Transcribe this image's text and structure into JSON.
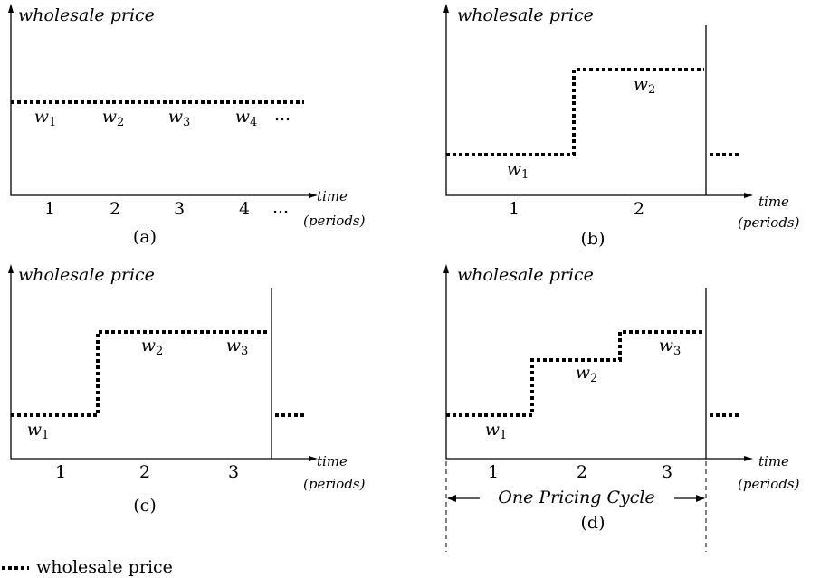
{
  "panels": [
    {
      "y_label": "wholesale price",
      "x_label": "time",
      "x_unit": "(periods)",
      "caption": "(a)",
      "periods": [
        "1",
        "2",
        "3",
        "4",
        "..."
      ],
      "prices": [
        {
          "base": "w",
          "sub": "1"
        },
        {
          "base": "w",
          "sub": "2"
        },
        {
          "base": "w",
          "sub": "3"
        },
        {
          "base": "w",
          "sub": "4"
        },
        {
          "base": "..."
        }
      ]
    },
    {
      "y_label": "wholesale price",
      "x_label": "time",
      "x_unit": "(periods)",
      "caption": "(b)",
      "periods": [
        "1",
        "2"
      ],
      "prices": [
        {
          "base": "w",
          "sub": "1"
        },
        {
          "base": "w",
          "sub": "2"
        }
      ]
    },
    {
      "y_label": "wholesale price",
      "x_label": "time",
      "x_unit": "(periods)",
      "caption": "(c)",
      "periods": [
        "1",
        "2",
        "3"
      ],
      "prices": [
        {
          "base": "w",
          "sub": "1"
        },
        {
          "base": "w",
          "sub": "2"
        },
        {
          "base": "w",
          "sub": "3"
        }
      ]
    },
    {
      "y_label": "wholesale price",
      "x_label": "time",
      "x_unit": "(periods)",
      "caption": "(d)",
      "periods": [
        "1",
        "2",
        "3"
      ],
      "prices": [
        {
          "base": "w",
          "sub": "1"
        },
        {
          "base": "w",
          "sub": "2"
        },
        {
          "base": "w",
          "sub": "3"
        }
      ],
      "cycle_label": "One Pricing Cycle"
    }
  ],
  "legend": {
    "label": "wholesale price"
  }
}
